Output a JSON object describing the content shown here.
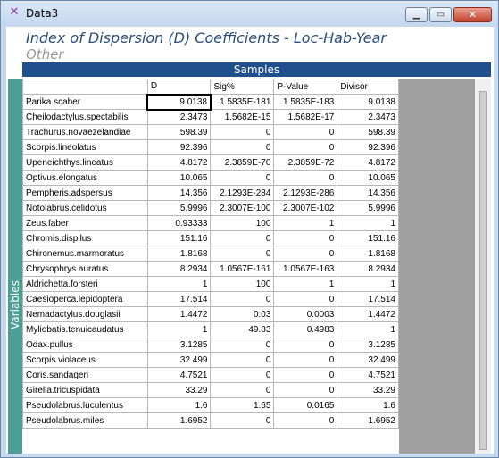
{
  "window": {
    "title": "Data3",
    "app_icon": "sigma-icon"
  },
  "heading": "Index of Dispersion (D) Coefficients - Loc-Hab-Year",
  "subheading": "Other",
  "samples_label": "Samples",
  "variables_label": "Variables",
  "columns": [
    "D",
    "Sig%",
    "P-Value",
    "Divisor"
  ],
  "rows": [
    {
      "name": "Parika.scaber",
      "d": "9.0138",
      "sig": "1.5835E-181",
      "p": "1.5835E-183",
      "div": "9.0138"
    },
    {
      "name": "Cheilodactylus.spectabilis",
      "d": "2.3473",
      "sig": "1.5682E-15",
      "p": "1.5682E-17",
      "div": "2.3473"
    },
    {
      "name": "Trachurus.novaezelandiae",
      "d": "598.39",
      "sig": "0",
      "p": "0",
      "div": "598.39"
    },
    {
      "name": "Scorpis.lineolatus",
      "d": "92.396",
      "sig": "0",
      "p": "0",
      "div": "92.396"
    },
    {
      "name": "Upeneichthys.lineatus",
      "d": "4.8172",
      "sig": "2.3859E-70",
      "p": "2.3859E-72",
      "div": "4.8172"
    },
    {
      "name": "Optivus.elongatus",
      "d": "10.065",
      "sig": "0",
      "p": "0",
      "div": "10.065"
    },
    {
      "name": "Pempheris.adspersus",
      "d": "14.356",
      "sig": "2.1293E-284",
      "p": "2.1293E-286",
      "div": "14.356"
    },
    {
      "name": "Notolabrus.celidotus",
      "d": "5.9996",
      "sig": "2.3007E-100",
      "p": "2.3007E-102",
      "div": "5.9996"
    },
    {
      "name": "Zeus.faber",
      "d": "0.93333",
      "sig": "100",
      "p": "1",
      "div": "1"
    },
    {
      "name": "Chromis.dispilus",
      "d": "151.16",
      "sig": "0",
      "p": "0",
      "div": "151.16"
    },
    {
      "name": "Chironemus.marmoratus",
      "d": "1.8168",
      "sig": "0",
      "p": "0",
      "div": "1.8168"
    },
    {
      "name": "Chrysophrys.auratus",
      "d": "8.2934",
      "sig": "1.0567E-161",
      "p": "1.0567E-163",
      "div": "8.2934"
    },
    {
      "name": "Aldrichetta.forsteri",
      "d": "1",
      "sig": "100",
      "p": "1",
      "div": "1"
    },
    {
      "name": "Caesioperca.lepidoptera",
      "d": "17.514",
      "sig": "0",
      "p": "0",
      "div": "17.514"
    },
    {
      "name": "Nemadactylus.douglasii",
      "d": "1.4472",
      "sig": "0.03",
      "p": "0.0003",
      "div": "1.4472"
    },
    {
      "name": "Myliobatis.tenuicaudatus",
      "d": "1",
      "sig": "49.83",
      "p": "0.4983",
      "div": "1"
    },
    {
      "name": "Odax.pullus",
      "d": "3.1285",
      "sig": "0",
      "p": "0",
      "div": "3.1285"
    },
    {
      "name": "Scorpis.violaceus",
      "d": "32.499",
      "sig": "0",
      "p": "0",
      "div": "32.499"
    },
    {
      "name": "Coris.sandageri",
      "d": "4.7521",
      "sig": "0",
      "p": "0",
      "div": "4.7521"
    },
    {
      "name": "Girella.tricuspidata",
      "d": "33.29",
      "sig": "0",
      "p": "0",
      "div": "33.29"
    },
    {
      "name": "Pseudolabrus.luculentus",
      "d": "1.6",
      "sig": "1.65",
      "p": "0.0165",
      "div": "1.6"
    },
    {
      "name": "Pseudolabrus.miles",
      "d": "1.6952",
      "sig": "0",
      "p": "0",
      "div": "1.6952"
    }
  ]
}
